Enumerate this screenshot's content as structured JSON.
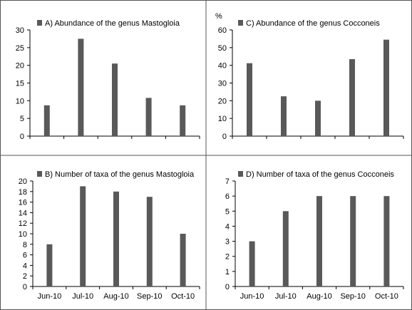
{
  "unit_label": "%",
  "x_categories": [
    "Jun-10",
    "Jul-10",
    "Aug-10",
    "Sep-10",
    "Oct-10"
  ],
  "chart_data": [
    {
      "type": "bar",
      "legend": "A) Abundance of the genus Mastogloia",
      "categories": [
        "Jun-10",
        "Jul-10",
        "Aug-10",
        "Sep-10",
        "Oct-10"
      ],
      "values": [
        8.7,
        27.5,
        20.5,
        10.8,
        8.7
      ],
      "ylim": [
        0,
        30
      ],
      "yticks": [
        0,
        5,
        10,
        15,
        20,
        25,
        30
      ],
      "ylabel": "",
      "bar_color": "#595959"
    },
    {
      "type": "bar",
      "legend": "C) Abundance of the genus Cocconeis",
      "categories": [
        "Jun-10",
        "Jul-10",
        "Aug-10",
        "Sep-10",
        "Oct-10"
      ],
      "values": [
        41.2,
        22.5,
        20,
        43.5,
        54.5
      ],
      "ylim": [
        0,
        60
      ],
      "yticks": [
        0,
        10,
        20,
        30,
        40,
        50,
        60
      ],
      "ylabel": "%",
      "bar_color": "#595959"
    },
    {
      "type": "bar",
      "legend": "B) Number of taxa of the genus Mastogloia",
      "categories": [
        "Jun-10",
        "Jul-10",
        "Aug-10",
        "Sep-10",
        "Oct-10"
      ],
      "values": [
        8,
        19,
        18,
        17,
        10
      ],
      "ylim": [
        0,
        20
      ],
      "yticks": [
        0,
        2,
        4,
        6,
        8,
        10,
        12,
        14,
        16,
        18,
        20
      ],
      "ylabel": "",
      "bar_color": "#595959"
    },
    {
      "type": "bar",
      "legend": "D) Number of taxa of the genus Cocconeis",
      "categories": [
        "Jun-10",
        "Jul-10",
        "Aug-10",
        "Sep-10",
        "Oct-10"
      ],
      "values": [
        3,
        5,
        6,
        6,
        6
      ],
      "ylim": [
        0,
        7
      ],
      "yticks": [
        0,
        1,
        2,
        3,
        4,
        5,
        6,
        7
      ],
      "ylabel": "",
      "bar_color": "#595959"
    }
  ]
}
